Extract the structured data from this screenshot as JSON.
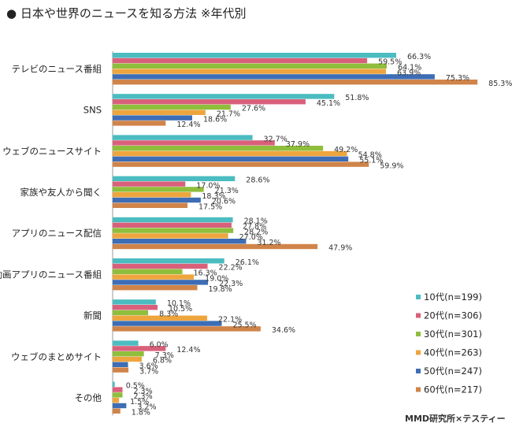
{
  "title": "● 日本や世界のニュースを知る方法 ※年代別",
  "credit": "MMD研究所×テスティー",
  "chart_data": {
    "type": "bar",
    "orientation": "horizontal",
    "categories": [
      "テレビのニュース番組",
      "SNS",
      "ウェブのニュースサイト",
      "家族や友人から聞く",
      "アプリのニュース配信",
      "動画アプリのニュース番組",
      "新聞",
      "ウェブのまとめサイト",
      "その他"
    ],
    "series": [
      {
        "name": "10代(n=199)",
        "color": "#4bbcc0",
        "values": [
          66.3,
          51.8,
          32.7,
          28.6,
          28.1,
          26.1,
          10.1,
          6.0,
          0.5
        ]
      },
      {
        "name": "20代(n=306)",
        "color": "#d9607a",
        "values": [
          59.5,
          45.1,
          37.9,
          17.0,
          27.8,
          22.2,
          10.5,
          12.4,
          2.3
        ]
      },
      {
        "name": "30代(n=301)",
        "color": "#8fbe3c",
        "values": [
          64.1,
          27.6,
          49.2,
          21.3,
          28.2,
          16.3,
          8.3,
          7.3,
          2.3
        ]
      },
      {
        "name": "40代(n=263)",
        "color": "#eea53e",
        "values": [
          63.9,
          21.7,
          54.8,
          18.3,
          27.0,
          19.0,
          22.1,
          6.8,
          1.5
        ]
      },
      {
        "name": "50代(n=247)",
        "color": "#3d6db5",
        "values": [
          75.3,
          18.6,
          55.1,
          20.6,
          31.2,
          22.3,
          25.5,
          3.6,
          3.2
        ]
      },
      {
        "name": "60代(n=217)",
        "color": "#d0844a",
        "values": [
          85.3,
          12.4,
          59.9,
          17.5,
          47.9,
          19.8,
          34.6,
          3.7,
          1.8
        ]
      }
    ],
    "xlim": [
      0,
      100
    ],
    "value_format": "%",
    "legend_position": "right-bottom",
    "grid": false
  }
}
